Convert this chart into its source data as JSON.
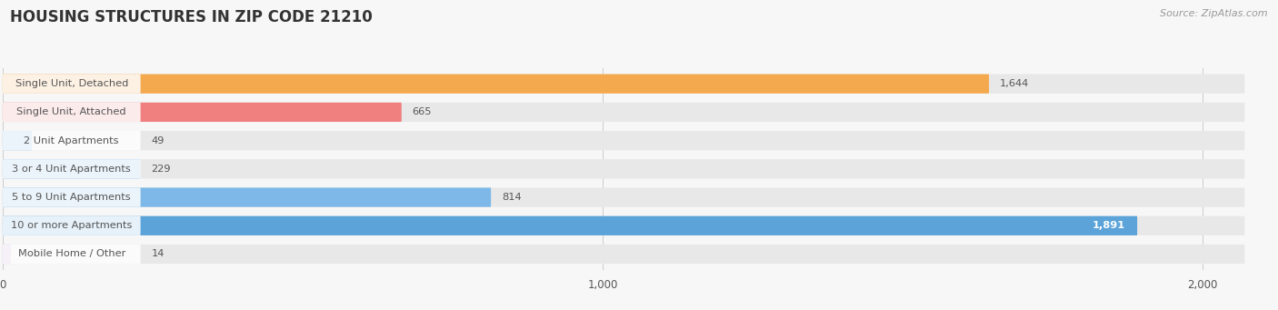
{
  "title": "HOUSING STRUCTURES IN ZIP CODE 21210",
  "source": "Source: ZipAtlas.com",
  "categories": [
    "Single Unit, Detached",
    "Single Unit, Attached",
    "2 Unit Apartments",
    "3 or 4 Unit Apartments",
    "5 to 9 Unit Apartments",
    "10 or more Apartments",
    "Mobile Home / Other"
  ],
  "values": [
    1644,
    665,
    49,
    229,
    814,
    1891,
    14
  ],
  "bar_colors": [
    "#f5a94e",
    "#f08080",
    "#7eb8e8",
    "#7eb8e8",
    "#7eb8e8",
    "#5ba3d9",
    "#c9a8d4"
  ],
  "bar_bg_color": "#e8e8e8",
  "bg_color": "#f7f7f7",
  "label_color": "#555555",
  "value_color": "#555555",
  "title_color": "#333333",
  "source_color": "#999999",
  "xlim_max": 2100,
  "bg_bar_max": 2070,
  "xticks": [
    0,
    1000,
    2000
  ],
  "xtick_labels": [
    "0",
    "1,000",
    "2,000"
  ],
  "bar_height": 0.68,
  "bar_spacing": 1.0
}
